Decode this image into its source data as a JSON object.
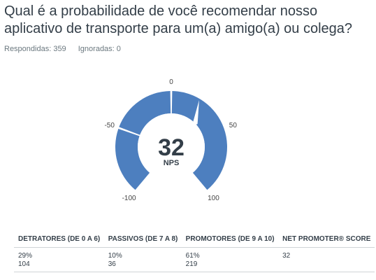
{
  "question": "Qual é a probabilidade de você recomendar nosso aplicativo de transporte para um(a) amigo(a) ou colega?",
  "respondents": {
    "answered_label": "Respondidas: 359",
    "skipped_label": "Ignoradas: 0"
  },
  "colors": {
    "gauge_fill": "#4d7fbf",
    "gauge_bg": "#ffffff",
    "text": "#333e48"
  },
  "chart_data": {
    "type": "gauge",
    "value": 32,
    "value_label": "32",
    "unit_label": "NPS",
    "range": [
      -100,
      100
    ],
    "ticks": [
      {
        "value": -100,
        "label": "-100"
      },
      {
        "value": -50,
        "label": "-50"
      },
      {
        "value": 0,
        "label": "0"
      },
      {
        "value": 50,
        "label": "50"
      },
      {
        "value": 100,
        "label": "100"
      }
    ]
  },
  "table": {
    "headers": [
      "DETRATORES (DE 0 A 6)",
      "PASSIVOS (DE 7 A 8)",
      "PROMOTORES (DE 9 A 10)",
      "NET PROMOTER® SCORE"
    ],
    "rows": [
      {
        "pct": "29%",
        "count": "104"
      },
      {
        "pct": "10%",
        "count": "36"
      },
      {
        "pct": "61%",
        "count": "219"
      },
      {
        "pct": "32",
        "count": ""
      }
    ]
  }
}
